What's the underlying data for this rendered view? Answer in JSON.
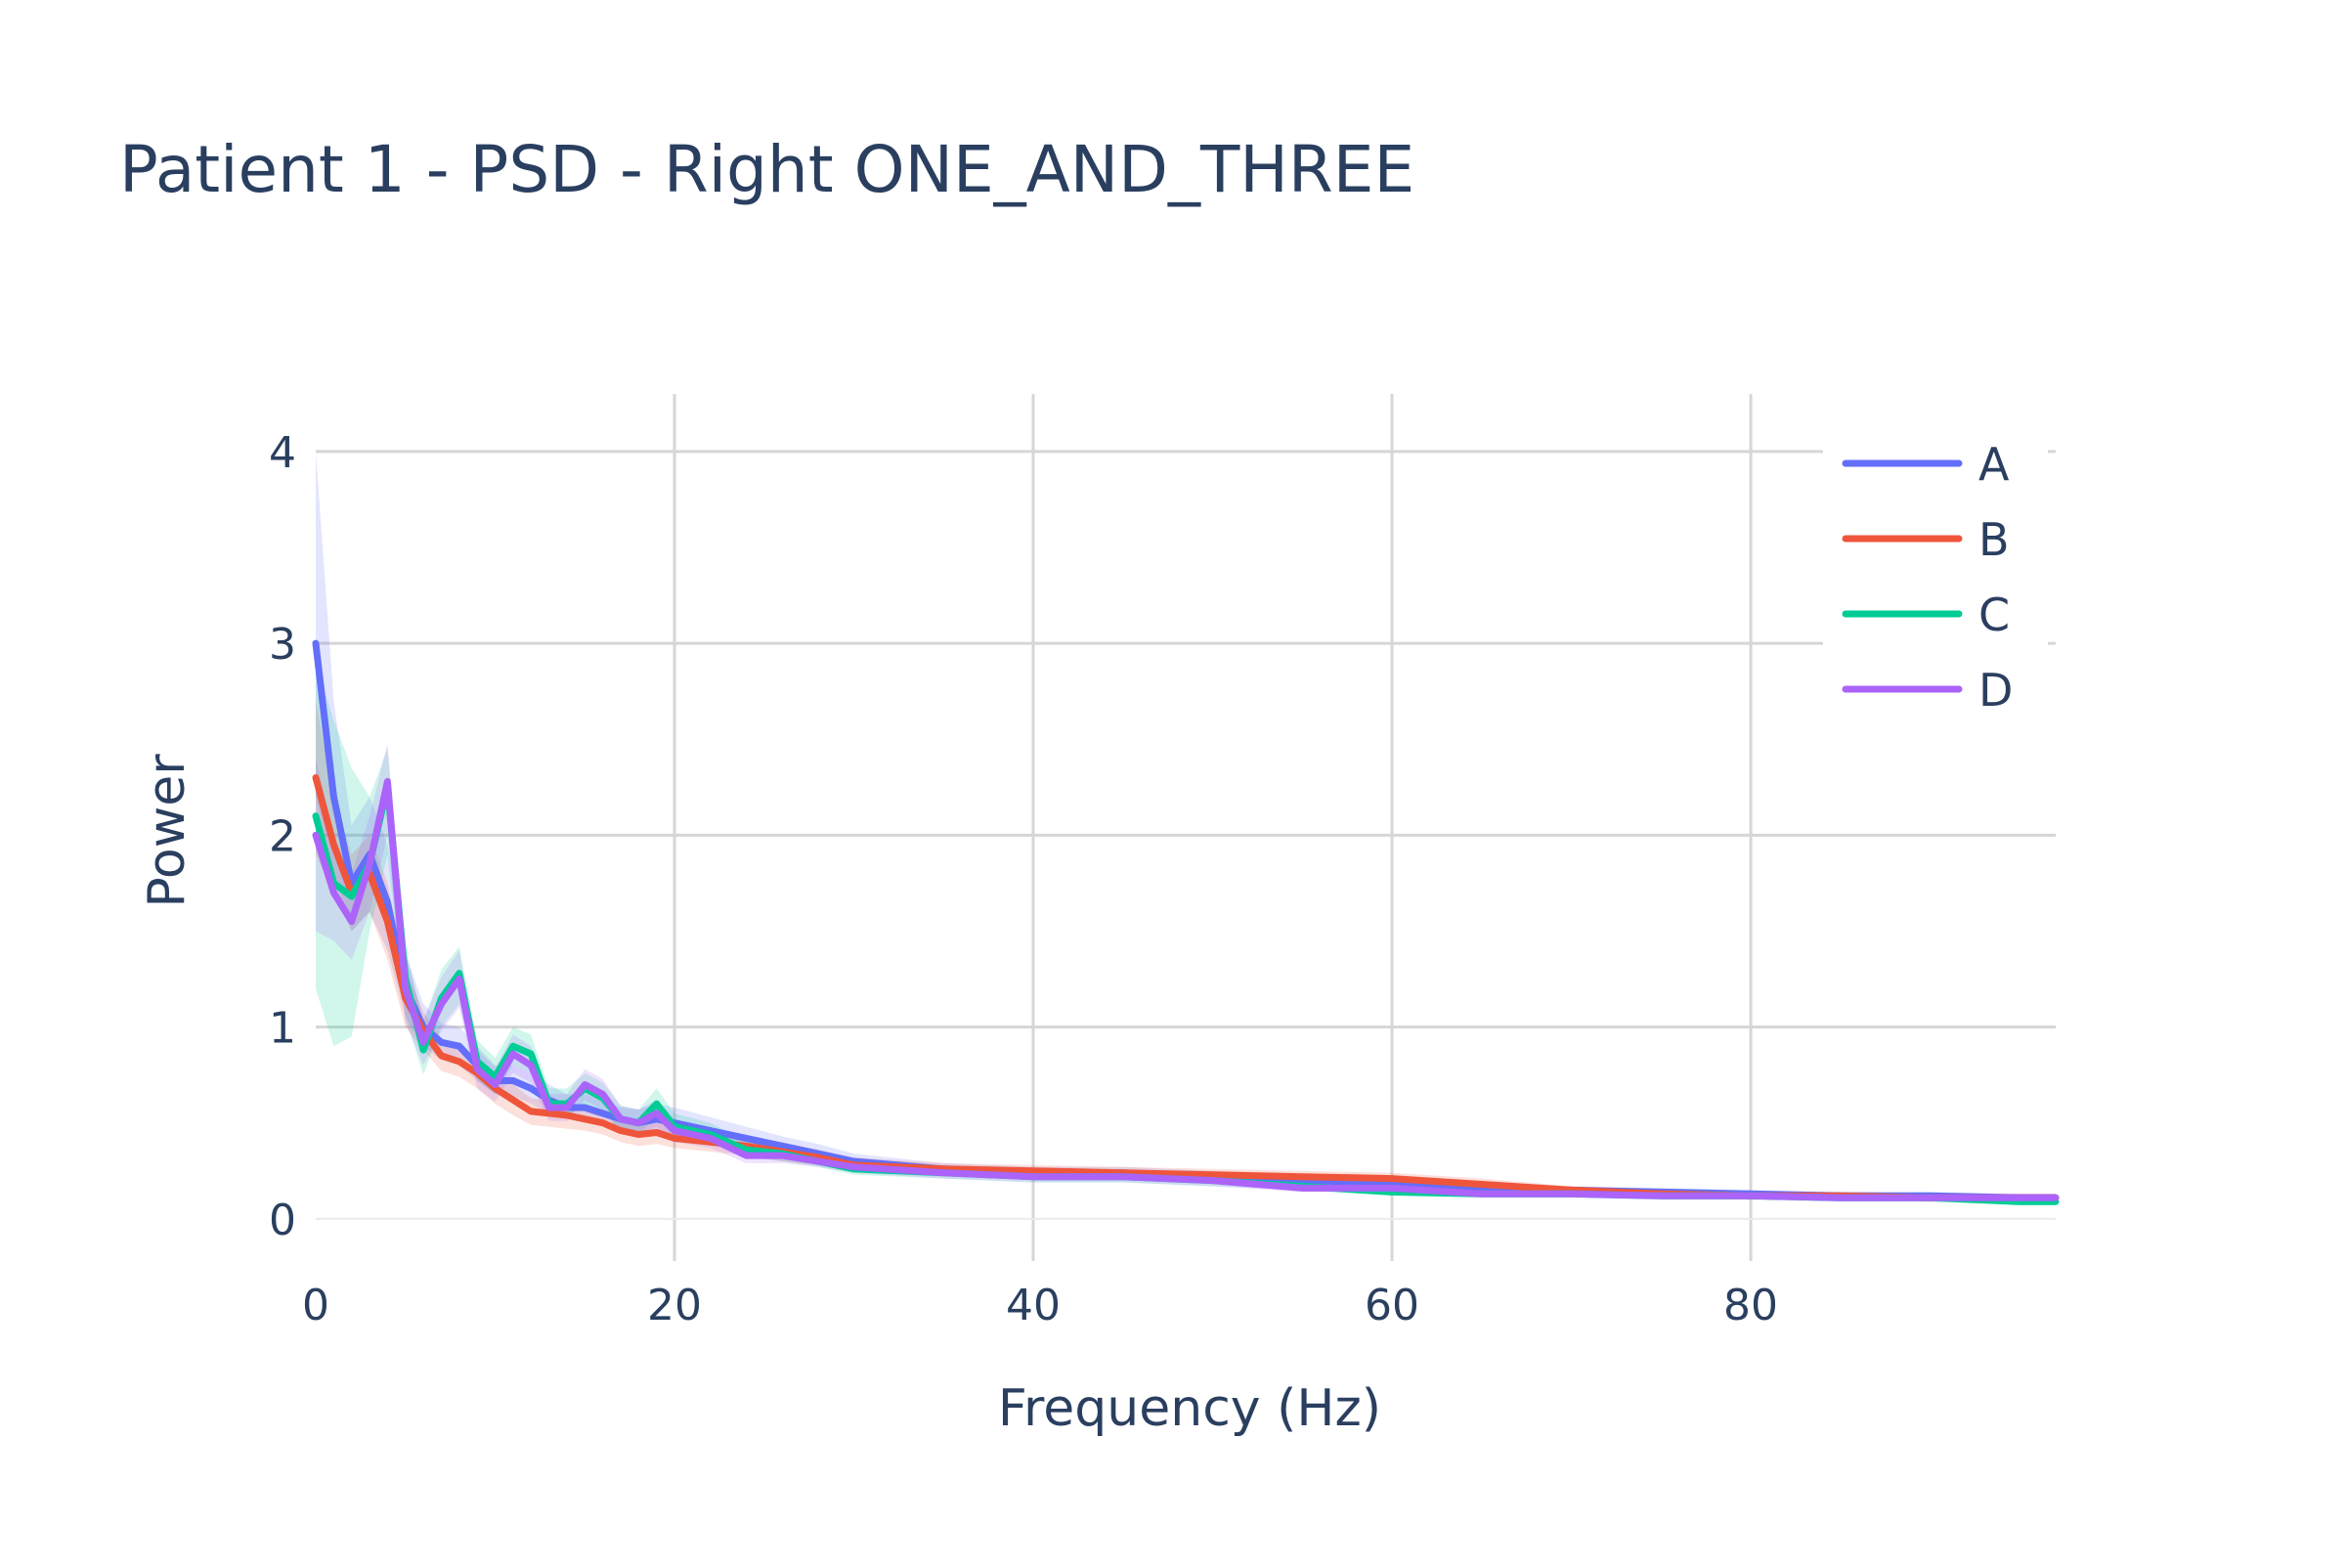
{
  "chart_data": {
    "type": "line",
    "title": "Patient 1 - PSD - Right ONE_AND_THREE",
    "xlabel": "Frequency (Hz)",
    "ylabel": "Power",
    "xlim": [
      0,
      97
    ],
    "ylim": [
      -0.22,
      4.3
    ],
    "xticks": [
      0,
      20,
      40,
      60,
      80
    ],
    "yticks": [
      0,
      1,
      2,
      3,
      4
    ],
    "grid": true,
    "legend_position": "top-right",
    "x": [
      0,
      1,
      2,
      3,
      4,
      5,
      6,
      7,
      8,
      9,
      10,
      11,
      12,
      13,
      14,
      15,
      16,
      17,
      18,
      19,
      20,
      22,
      24,
      26,
      28,
      30,
      35,
      40,
      45,
      50,
      55,
      60,
      65,
      70,
      75,
      80,
      85,
      90,
      95,
      97
    ],
    "series": [
      {
        "name": "A",
        "color": "#636efa",
        "values": [
          3.0,
          2.2,
          1.75,
          1.9,
          1.65,
          1.2,
          1.0,
          0.92,
          0.9,
          0.8,
          0.72,
          0.72,
          0.68,
          0.62,
          0.58,
          0.58,
          0.55,
          0.52,
          0.5,
          0.52,
          0.5,
          0.46,
          0.42,
          0.38,
          0.34,
          0.3,
          0.26,
          0.24,
          0.24,
          0.22,
          0.2,
          0.18,
          0.16,
          0.15,
          0.14,
          0.13,
          0.12,
          0.12,
          0.11,
          0.11
        ],
        "band_lower": [
          2.2,
          1.8,
          1.5,
          1.6,
          1.4,
          1.05,
          0.9,
          0.83,
          0.8,
          0.72,
          0.65,
          0.64,
          0.6,
          0.55,
          0.52,
          0.52,
          0.49,
          0.46,
          0.44,
          0.46,
          0.44,
          0.41,
          0.37,
          0.33,
          0.3,
          0.27,
          0.23,
          0.21,
          0.21,
          0.19,
          0.17,
          0.15,
          0.14,
          0.13,
          0.12,
          0.11,
          0.1,
          0.1,
          0.09,
          0.09
        ],
        "band_upper": [
          4.0,
          2.7,
          2.05,
          2.2,
          1.95,
          1.38,
          1.12,
          1.02,
          1.0,
          0.9,
          0.8,
          0.8,
          0.76,
          0.7,
          0.65,
          0.65,
          0.62,
          0.58,
          0.57,
          0.6,
          0.58,
          0.53,
          0.48,
          0.43,
          0.39,
          0.34,
          0.29,
          0.27,
          0.27,
          0.25,
          0.23,
          0.21,
          0.18,
          0.17,
          0.16,
          0.15,
          0.14,
          0.14,
          0.13,
          0.13
        ]
      },
      {
        "name": "B",
        "color": "#ef553b",
        "values": [
          2.3,
          1.95,
          1.7,
          1.8,
          1.55,
          1.15,
          0.98,
          0.85,
          0.82,
          0.76,
          0.68,
          0.62,
          0.56,
          0.55,
          0.54,
          0.52,
          0.5,
          0.46,
          0.44,
          0.45,
          0.42,
          0.4,
          0.38,
          0.35,
          0.32,
          0.28,
          0.26,
          0.25,
          0.24,
          0.23,
          0.22,
          0.21,
          0.18,
          0.15,
          0.13,
          0.12,
          0.12,
          0.11,
          0.11,
          0.11
        ],
        "band_lower": [
          1.9,
          1.7,
          1.5,
          1.6,
          1.35,
          1.0,
          0.88,
          0.77,
          0.74,
          0.68,
          0.6,
          0.54,
          0.49,
          0.48,
          0.47,
          0.46,
          0.44,
          0.4,
          0.38,
          0.39,
          0.37,
          0.35,
          0.33,
          0.3,
          0.28,
          0.25,
          0.23,
          0.22,
          0.21,
          0.2,
          0.19,
          0.18,
          0.16,
          0.13,
          0.11,
          0.1,
          0.1,
          0.09,
          0.09,
          0.09
        ],
        "band_upper": [
          2.7,
          2.2,
          1.9,
          2.0,
          1.75,
          1.3,
          1.08,
          0.94,
          0.9,
          0.84,
          0.76,
          0.7,
          0.63,
          0.62,
          0.61,
          0.59,
          0.57,
          0.52,
          0.5,
          0.51,
          0.48,
          0.45,
          0.43,
          0.4,
          0.36,
          0.32,
          0.29,
          0.28,
          0.27,
          0.26,
          0.25,
          0.24,
          0.21,
          0.17,
          0.15,
          0.14,
          0.14,
          0.13,
          0.13,
          0.13
        ]
      },
      {
        "name": "C",
        "color": "#00cc96",
        "values": [
          2.1,
          1.75,
          1.68,
          1.85,
          2.25,
          1.25,
          0.88,
          1.15,
          1.28,
          0.82,
          0.74,
          0.9,
          0.86,
          0.6,
          0.6,
          0.68,
          0.63,
          0.52,
          0.5,
          0.6,
          0.48,
          0.44,
          0.36,
          0.34,
          0.3,
          0.26,
          0.24,
          0.22,
          0.22,
          0.2,
          0.17,
          0.14,
          0.13,
          0.13,
          0.12,
          0.12,
          0.11,
          0.11,
          0.09,
          0.09
        ],
        "band_lower": [
          1.2,
          0.9,
          0.95,
          1.5,
          1.9,
          1.05,
          0.75,
          1.0,
          1.12,
          0.72,
          0.65,
          0.8,
          0.76,
          0.53,
          0.53,
          0.6,
          0.56,
          0.46,
          0.44,
          0.53,
          0.42,
          0.39,
          0.32,
          0.3,
          0.27,
          0.23,
          0.21,
          0.19,
          0.19,
          0.17,
          0.15,
          0.12,
          0.11,
          0.11,
          0.1,
          0.1,
          0.09,
          0.09,
          0.07,
          0.07
        ],
        "band_upper": [
          2.9,
          2.6,
          2.35,
          2.2,
          2.45,
          1.42,
          1.02,
          1.3,
          1.42,
          0.93,
          0.84,
          1.0,
          0.96,
          0.68,
          0.68,
          0.76,
          0.71,
          0.59,
          0.57,
          0.68,
          0.55,
          0.5,
          0.41,
          0.39,
          0.34,
          0.3,
          0.27,
          0.25,
          0.25,
          0.23,
          0.19,
          0.16,
          0.15,
          0.15,
          0.14,
          0.14,
          0.13,
          0.13,
          0.11,
          0.11
        ]
      },
      {
        "name": "D",
        "color": "#ab63fa",
        "values": [
          2.0,
          1.7,
          1.55,
          1.85,
          2.28,
          1.2,
          0.92,
          1.12,
          1.25,
          0.78,
          0.7,
          0.86,
          0.8,
          0.58,
          0.58,
          0.7,
          0.65,
          0.52,
          0.5,
          0.55,
          0.46,
          0.42,
          0.33,
          0.33,
          0.3,
          0.27,
          0.24,
          0.22,
          0.22,
          0.2,
          0.16,
          0.16,
          0.13,
          0.13,
          0.12,
          0.12,
          0.11,
          0.11,
          0.11,
          0.11
        ],
        "band_lower": [
          1.5,
          1.45,
          1.35,
          1.6,
          2.0,
          1.02,
          0.8,
          0.98,
          1.1,
          0.68,
          0.61,
          0.76,
          0.71,
          0.51,
          0.51,
          0.62,
          0.57,
          0.45,
          0.44,
          0.48,
          0.4,
          0.37,
          0.29,
          0.29,
          0.27,
          0.24,
          0.21,
          0.19,
          0.19,
          0.17,
          0.14,
          0.14,
          0.11,
          0.11,
          0.1,
          0.1,
          0.09,
          0.09,
          0.09,
          0.09
        ],
        "band_upper": [
          2.4,
          2.0,
          1.8,
          2.1,
          2.48,
          1.38,
          1.04,
          1.26,
          1.4,
          0.88,
          0.79,
          0.96,
          0.9,
          0.65,
          0.65,
          0.78,
          0.73,
          0.59,
          0.57,
          0.62,
          0.52,
          0.47,
          0.37,
          0.37,
          0.34,
          0.3,
          0.27,
          0.25,
          0.25,
          0.23,
          0.18,
          0.18,
          0.15,
          0.15,
          0.14,
          0.14,
          0.13,
          0.13,
          0.13,
          0.13
        ]
      }
    ]
  }
}
